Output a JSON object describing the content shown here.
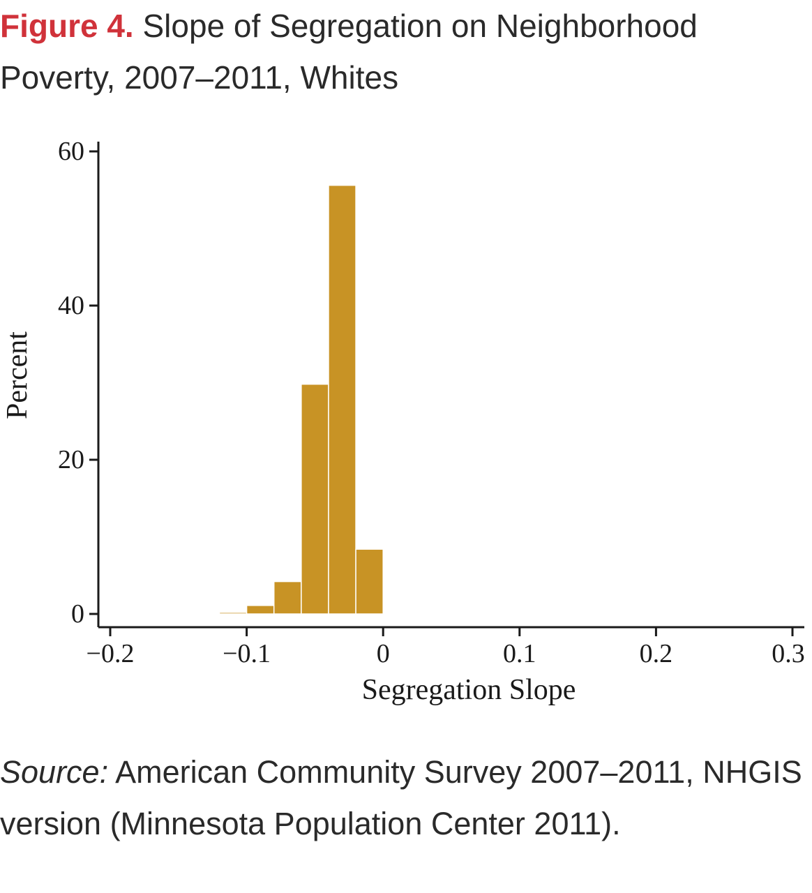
{
  "caption": {
    "label": "Figure 4.",
    "text": " Slope of Segregation on Neighborhood Poverty, 2007–2011, Whites"
  },
  "source": {
    "label": "Source:",
    "text": " American Community Survey 2007–2011, NHGIS version (Minnesota Population Center 2011)."
  },
  "colors": {
    "bars": "#c89325",
    "axis": "#1a1a1a"
  },
  "chart_data": {
    "type": "bar",
    "title": "",
    "xlabel": "Segregation Slope",
    "ylabel": "Percent",
    "xlim": [
      -0.2,
      0.3
    ],
    "ylim": [
      0,
      60
    ],
    "grid": false,
    "xticks": [
      -0.2,
      -0.1,
      0,
      0.1,
      0.2,
      0.3
    ],
    "xtick_labels": [
      "−0.2",
      "−0.1",
      "0",
      "0.1",
      "0.2",
      "0.3"
    ],
    "yticks": [
      0,
      20,
      40,
      60
    ],
    "ytick_labels": [
      "0",
      "20",
      "40",
      "60"
    ],
    "bins": [
      {
        "x0": -0.12,
        "x1": -0.1,
        "value": 0.2
      },
      {
        "x0": -0.1,
        "x1": -0.08,
        "value": 1.1
      },
      {
        "x0": -0.08,
        "x1": -0.06,
        "value": 4.2
      },
      {
        "x0": -0.06,
        "x1": -0.04,
        "value": 29.8
      },
      {
        "x0": -0.04,
        "x1": -0.02,
        "value": 55.6
      },
      {
        "x0": -0.02,
        "x1": 0.0,
        "value": 8.4
      }
    ]
  }
}
